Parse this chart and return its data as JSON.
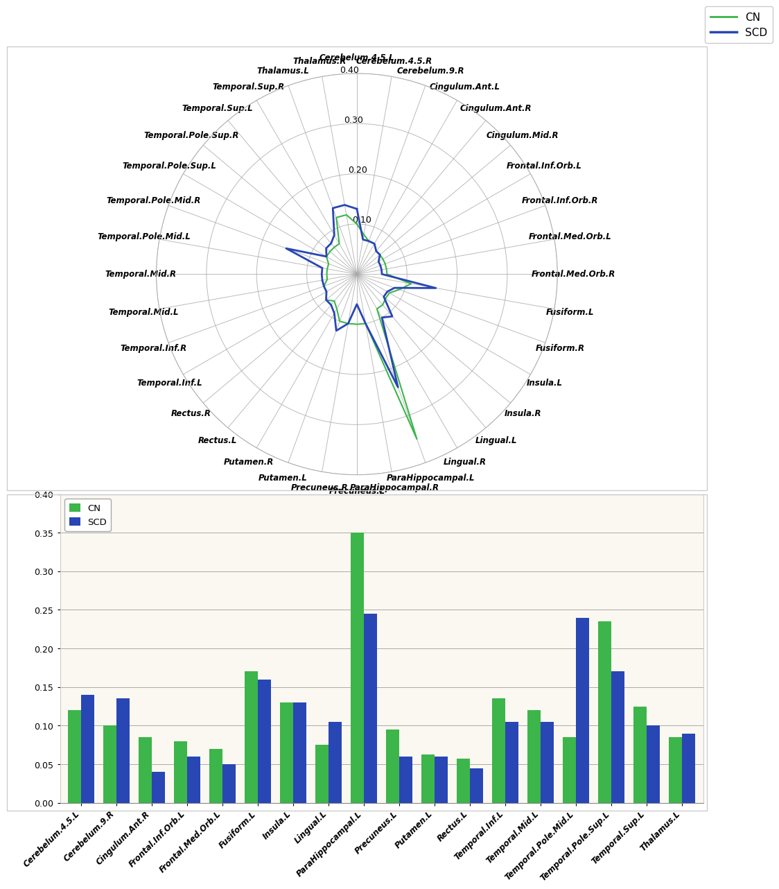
{
  "polar_labels": [
    "Cerebelum.4.5.L",
    "Cerebelum.4.5.R",
    "Cerebelum.9.R",
    "Cingulum.Ant.L",
    "Cingulum.Ant.R",
    "Cingulum.Mid.R",
    "Frontal.Inf.Orb.L",
    "Frontal.Inf.Orb.R",
    "Frontal.Med.Orb.L",
    "Frontal.Med.Orb.R",
    "Fusiform.L",
    "Fusiform.R",
    "Insula.L",
    "Insula.R",
    "Lingual.L",
    "Lingual.R",
    "ParaHippocampal.L",
    "ParaHippocampal.R",
    "Precuneus.L",
    "Precuneus.R",
    "Putamen.L",
    "Putamen.R",
    "Rectus.L",
    "Rectus.R",
    "Temporal.Inf.L",
    "Temporal.Inf.R",
    "Temporal.Mid.L",
    "Temporal.Mid.R",
    "Temporal.Pole.Mid.L",
    "Temporal.Pole.Mid.R",
    "Temporal.Pole.Sup.L",
    "Temporal.Pole.Sup.R",
    "Temporal.Sup.L",
    "Temporal.Sup.R",
    "Thalamus.L",
    "Thalamus.R"
  ],
  "CN_polar": [
    0.1,
    0.08,
    0.07,
    0.07,
    0.06,
    0.06,
    0.06,
    0.06,
    0.06,
    0.06,
    0.11,
    0.09,
    0.075,
    0.075,
    0.08,
    0.08,
    0.35,
    0.1,
    0.1,
    0.1,
    0.1,
    0.08,
    0.07,
    0.08,
    0.07,
    0.07,
    0.06,
    0.06,
    0.06,
    0.06,
    0.07,
    0.07,
    0.07,
    0.07,
    0.12,
    0.12
  ],
  "SCD_polar": [
    0.13,
    0.07,
    0.07,
    0.07,
    0.06,
    0.06,
    0.05,
    0.05,
    0.05,
    0.05,
    0.16,
    0.08,
    0.07,
    0.07,
    0.11,
    0.1,
    0.24,
    0.1,
    0.06,
    0.1,
    0.12,
    0.09,
    0.08,
    0.08,
    0.07,
    0.07,
    0.07,
    0.07,
    0.07,
    0.15,
    0.07,
    0.08,
    0.08,
    0.09,
    0.14,
    0.14
  ],
  "bar_labels": [
    "Cerebelum.4.5.L",
    "Cerebelum.9.R",
    "Cingulum.Ant.R",
    "Frontal.Inf.Orb.L",
    "Frontal.Med.Orb.L",
    "Fusiform.L",
    "Insula.L",
    "Lingual.L",
    "ParaHippocampal.L",
    "Precuneus.L",
    "Putamen.L",
    "Rectus.L",
    "Temporal.Inf.L",
    "Temporal.Mid.L",
    "Temporal.Pole.Mid.L",
    "Temporal.Pole.Sup.L",
    "Temporal.Sup.L",
    "Thalamus.L"
  ],
  "CN_bar": [
    0.12,
    0.1,
    0.085,
    0.08,
    0.07,
    0.17,
    0.13,
    0.075,
    0.35,
    0.095,
    0.063,
    0.057,
    0.135,
    0.12,
    0.085,
    0.235,
    0.125,
    0.085
  ],
  "SCD_bar": [
    0.14,
    0.135,
    0.04,
    0.06,
    0.05,
    0.16,
    0.13,
    0.105,
    0.245,
    0.06,
    0.06,
    0.045,
    0.105,
    0.105,
    0.24,
    0.17,
    0.1,
    0.09
  ],
  "polar_rmax": 0.4,
  "polar_rticks": [
    0.0,
    0.1,
    0.2,
    0.3,
    0.4
  ],
  "polar_rtick_labels": [
    "",
    "0.10",
    "0.20",
    "0.30",
    "0.40"
  ],
  "bar_ylim": [
    0.0,
    0.4
  ],
  "bar_yticks": [
    0.0,
    0.05,
    0.1,
    0.15,
    0.2,
    0.25,
    0.3,
    0.35,
    0.4
  ],
  "bar_ytick_labels": [
    "0.00",
    "0.05",
    "0.10",
    "0.15",
    "0.20",
    "0.25",
    "0.30",
    "0.35",
    "0.40"
  ],
  "CN_color": "#3cb54a",
  "SCD_color": "#2946b5",
  "grid_color": "#aaaaaa",
  "figure_background": "#ffffff",
  "bar_bg_color": "#faf8f0",
  "polar_label_fontsize": 8.5,
  "bar_label_fontsize": 8.5
}
